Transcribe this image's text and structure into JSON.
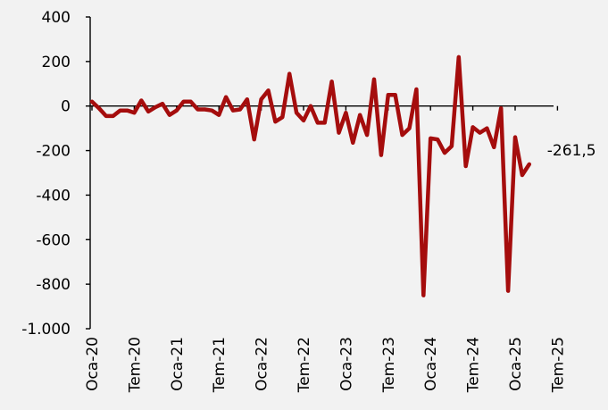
{
  "chart_data": {
    "type": "line",
    "title": "",
    "xlabel": "",
    "ylabel": "",
    "ylim": [
      -1000,
      400
    ],
    "y_ticks": [
      400,
      200,
      0,
      -200,
      -400,
      -600,
      -800,
      -1000
    ],
    "y_tick_labels": [
      "400",
      "200",
      "0",
      "-200",
      "-400",
      "-600",
      "-800",
      "-1.000"
    ],
    "x_ticks": [
      "Oca-20",
      "Tem-20",
      "Oca-21",
      "Tem-21",
      "Oca-22",
      "Tem-22",
      "Oca-23",
      "Tem-23",
      "Oca-24",
      "Tem-24",
      "Oca-25",
      "Tem-25"
    ],
    "x_range_months": [
      "2020-01",
      "2025-09"
    ],
    "grid": false,
    "legend": "none",
    "color": "#a50d0d",
    "series": [
      {
        "start_month": "2020-01",
        "values": [
          20,
          -10,
          -45,
          -45,
          -20,
          -20,
          -30,
          25,
          -25,
          -5,
          10,
          -40,
          -20,
          20,
          20,
          -15,
          -15,
          -20,
          -40,
          40,
          -20,
          -15,
          30,
          -150,
          30,
          70,
          -70,
          -50,
          145,
          -30,
          -65,
          0,
          -75,
          -75,
          110,
          -120,
          -30,
          -165,
          -40,
          -130,
          120,
          -220,
          50,
          50,
          -130,
          -100,
          75,
          -850,
          -145,
          -150,
          -210,
          -180,
          220,
          -270,
          -95,
          -120,
          -100,
          -185,
          -10,
          -830,
          -140,
          -310,
          -261.5
        ]
      }
    ],
    "annotations": [
      {
        "text": "-261,5",
        "month": "2025-03",
        "value": -261.5
      }
    ]
  }
}
